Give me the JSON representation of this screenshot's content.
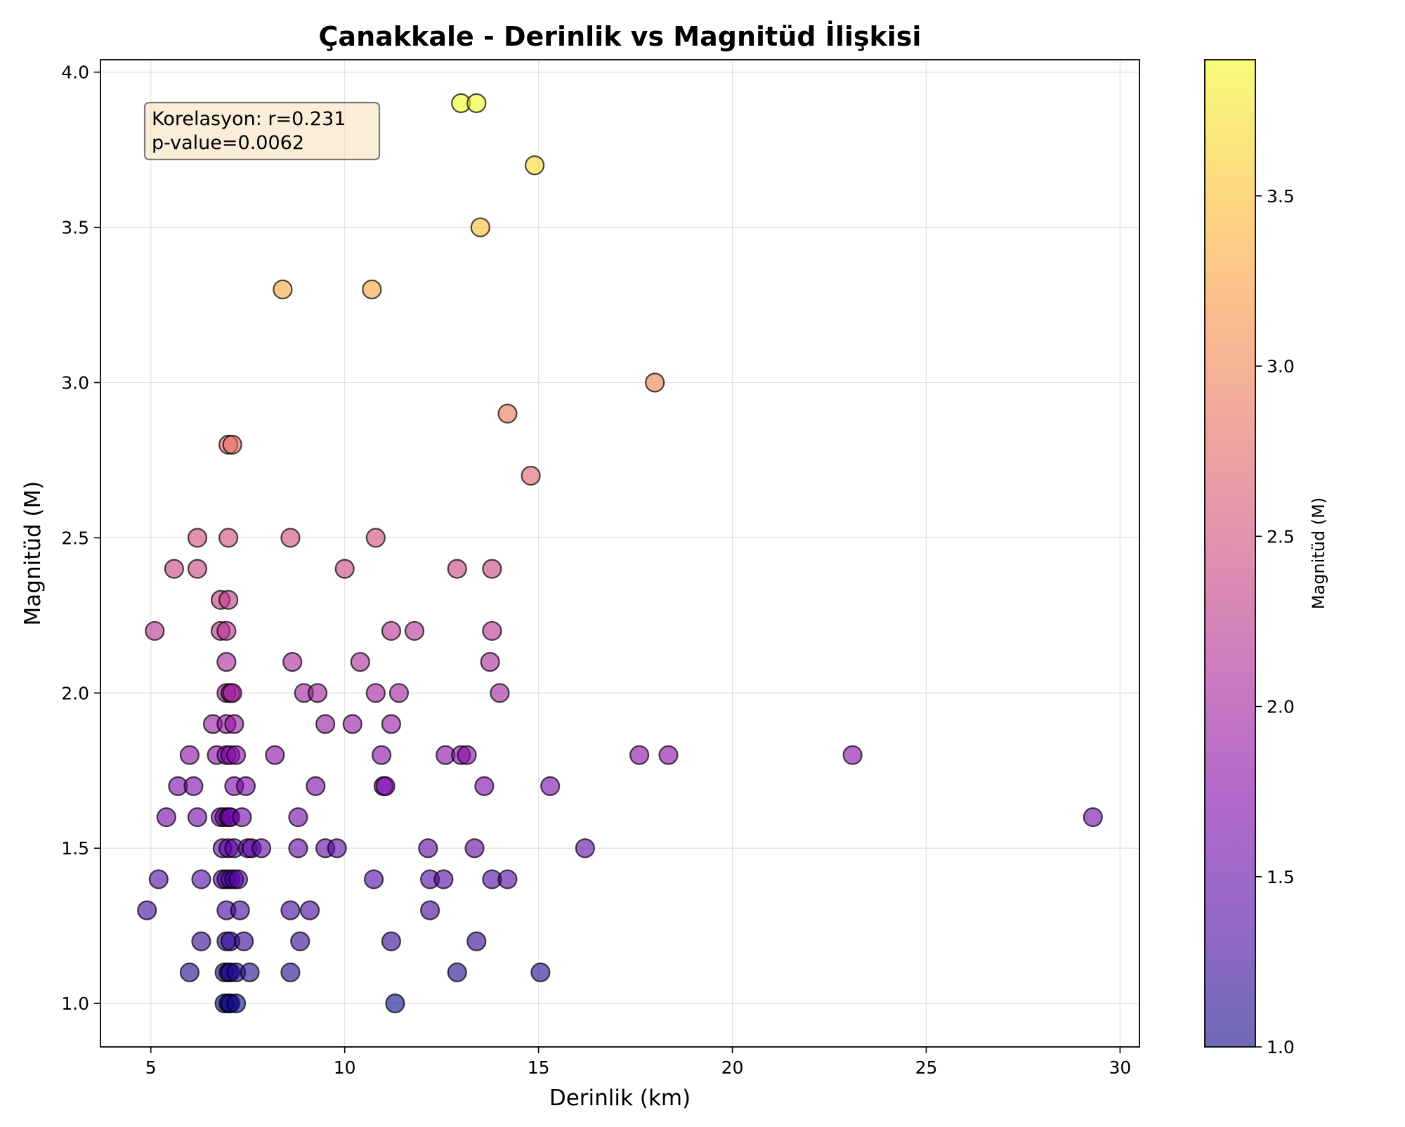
{
  "chart_data": {
    "type": "scatter",
    "title": "Çanakkale - Derinlik vs Magnitüd İlişkisi",
    "xlabel": "Derinlik (km)",
    "ylabel": "Magnitüd (M)",
    "xlim": [
      3.7,
      30.5
    ],
    "ylim": [
      0.86,
      4.04
    ],
    "xticks": [
      5,
      10,
      15,
      20,
      25,
      30
    ],
    "yticks": [
      1.0,
      1.5,
      2.0,
      2.5,
      3.0,
      3.5,
      4.0
    ],
    "xtick_labels": [
      "5",
      "10",
      "15",
      "20",
      "25",
      "30"
    ],
    "ytick_labels": [
      "1.0",
      "1.5",
      "2.0",
      "2.5",
      "3.0",
      "3.5",
      "4.0"
    ],
    "grid": true,
    "colormap": "plasma",
    "colorbar": {
      "label": "Magnitüd (M)",
      "range": [
        1.0,
        3.9
      ],
      "ticks": [
        1.0,
        1.5,
        2.0,
        2.5,
        3.0,
        3.5
      ],
      "tick_labels": [
        "1.0",
        "1.5",
        "2.0",
        "2.5",
        "3.0",
        "3.5"
      ]
    },
    "annotation": {
      "lines": [
        "Korelasyon: r=0.231",
        "p-value=0.0062"
      ],
      "placement": "top-left"
    },
    "series": [
      {
        "color_by": "y",
        "points": [
          [
            13.0,
            3.9
          ],
          [
            13.4,
            3.9
          ],
          [
            14.9,
            3.7
          ],
          [
            13.5,
            3.5
          ],
          [
            8.4,
            3.3
          ],
          [
            10.7,
            3.3
          ],
          [
            18.0,
            3.0
          ],
          [
            14.2,
            2.9
          ],
          [
            7.0,
            2.8
          ],
          [
            7.1,
            2.8
          ],
          [
            14.8,
            2.7
          ],
          [
            6.2,
            2.5
          ],
          [
            7.0,
            2.5
          ],
          [
            8.6,
            2.5
          ],
          [
            10.8,
            2.5
          ],
          [
            5.6,
            2.4
          ],
          [
            6.2,
            2.4
          ],
          [
            10.0,
            2.4
          ],
          [
            12.9,
            2.4
          ],
          [
            13.8,
            2.4
          ],
          [
            6.8,
            2.3
          ],
          [
            7.0,
            2.3
          ],
          [
            5.1,
            2.2
          ],
          [
            6.8,
            2.2
          ],
          [
            6.95,
            2.2
          ],
          [
            11.2,
            2.2
          ],
          [
            11.8,
            2.2
          ],
          [
            13.8,
            2.2
          ],
          [
            6.95,
            2.1
          ],
          [
            8.65,
            2.1
          ],
          [
            10.4,
            2.1
          ],
          [
            13.75,
            2.1
          ],
          [
            6.95,
            2.0
          ],
          [
            7.05,
            2.0
          ],
          [
            7.1,
            2.0
          ],
          [
            8.95,
            2.0
          ],
          [
            9.3,
            2.0
          ],
          [
            10.8,
            2.0
          ],
          [
            11.4,
            2.0
          ],
          [
            14.0,
            2.0
          ],
          [
            6.6,
            1.9
          ],
          [
            6.95,
            1.9
          ],
          [
            7.15,
            1.9
          ],
          [
            9.5,
            1.9
          ],
          [
            10.2,
            1.9
          ],
          [
            11.2,
            1.9
          ],
          [
            6.0,
            1.8
          ],
          [
            6.7,
            1.8
          ],
          [
            6.95,
            1.8
          ],
          [
            7.05,
            1.8
          ],
          [
            7.2,
            1.8
          ],
          [
            8.2,
            1.8
          ],
          [
            10.95,
            1.8
          ],
          [
            12.6,
            1.8
          ],
          [
            13.0,
            1.8
          ],
          [
            13.15,
            1.8
          ],
          [
            17.6,
            1.8
          ],
          [
            18.35,
            1.8
          ],
          [
            23.1,
            1.8
          ],
          [
            5.7,
            1.7
          ],
          [
            6.1,
            1.7
          ],
          [
            7.15,
            1.7
          ],
          [
            7.45,
            1.7
          ],
          [
            9.25,
            1.7
          ],
          [
            11.0,
            1.7
          ],
          [
            11.05,
            1.7
          ],
          [
            13.6,
            1.7
          ],
          [
            15.3,
            1.7
          ],
          [
            5.4,
            1.6
          ],
          [
            6.2,
            1.6
          ],
          [
            6.8,
            1.6
          ],
          [
            6.9,
            1.6
          ],
          [
            7.0,
            1.6
          ],
          [
            7.05,
            1.6
          ],
          [
            7.35,
            1.6
          ],
          [
            8.8,
            1.6
          ],
          [
            29.3,
            1.6
          ],
          [
            6.85,
            1.5
          ],
          [
            7.0,
            1.5
          ],
          [
            7.15,
            1.5
          ],
          [
            7.5,
            1.5
          ],
          [
            7.6,
            1.5
          ],
          [
            7.85,
            1.5
          ],
          [
            8.8,
            1.5
          ],
          [
            9.5,
            1.5
          ],
          [
            9.8,
            1.5
          ],
          [
            12.15,
            1.5
          ],
          [
            13.35,
            1.5
          ],
          [
            16.2,
            1.5
          ],
          [
            5.2,
            1.4
          ],
          [
            6.3,
            1.4
          ],
          [
            6.85,
            1.4
          ],
          [
            6.95,
            1.4
          ],
          [
            7.05,
            1.4
          ],
          [
            7.15,
            1.4
          ],
          [
            7.25,
            1.4
          ],
          [
            10.75,
            1.4
          ],
          [
            12.2,
            1.4
          ],
          [
            12.55,
            1.4
          ],
          [
            13.8,
            1.4
          ],
          [
            14.2,
            1.4
          ],
          [
            4.9,
            1.3
          ],
          [
            6.95,
            1.3
          ],
          [
            7.3,
            1.3
          ],
          [
            8.6,
            1.3
          ],
          [
            9.1,
            1.3
          ],
          [
            12.2,
            1.3
          ],
          [
            6.3,
            1.2
          ],
          [
            6.95,
            1.2
          ],
          [
            7.05,
            1.2
          ],
          [
            7.4,
            1.2
          ],
          [
            8.85,
            1.2
          ],
          [
            11.2,
            1.2
          ],
          [
            13.4,
            1.2
          ],
          [
            6.0,
            1.1
          ],
          [
            6.9,
            1.1
          ],
          [
            7.0,
            1.1
          ],
          [
            7.05,
            1.1
          ],
          [
            7.2,
            1.1
          ],
          [
            7.55,
            1.1
          ],
          [
            8.6,
            1.1
          ],
          [
            12.9,
            1.1
          ],
          [
            15.05,
            1.1
          ],
          [
            6.9,
            1.0
          ],
          [
            7.0,
            1.0
          ],
          [
            7.05,
            1.0
          ],
          [
            7.2,
            1.0
          ],
          [
            11.3,
            1.0
          ]
        ]
      }
    ]
  }
}
